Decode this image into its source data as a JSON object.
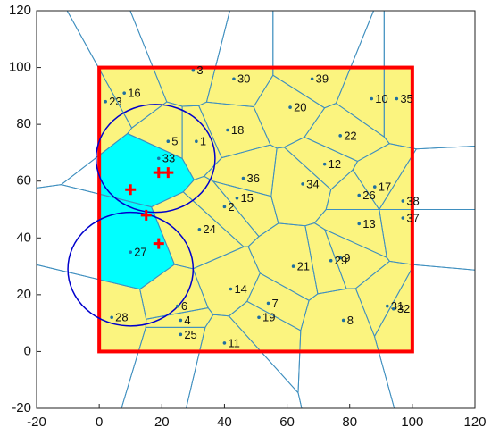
{
  "chart_data": {
    "type": "voronoi",
    "xlim": [
      -20,
      120
    ],
    "ylim": [
      -20,
      120
    ],
    "xticks": [
      -20,
      0,
      20,
      40,
      60,
      80,
      100,
      120
    ],
    "yticks": [
      -20,
      0,
      20,
      40,
      60,
      80,
      100,
      120
    ],
    "cell_color": "#fbf47f",
    "edge_color": "#3f8fbf",
    "point_color": "#1f6f9f",
    "points": [
      {
        "label": "1",
        "x": 31,
        "y": 74
      },
      {
        "label": "2",
        "x": 40,
        "y": 51
      },
      {
        "label": "3",
        "x": 30,
        "y": 99
      },
      {
        "label": "4",
        "x": 26,
        "y": 11
      },
      {
        "label": "5",
        "x": 22,
        "y": 74
      },
      {
        "label": "6",
        "x": 25,
        "y": 16
      },
      {
        "label": "7",
        "x": 54,
        "y": 17
      },
      {
        "label": "8",
        "x": 78,
        "y": 11
      },
      {
        "label": "9",
        "x": 77,
        "y": 33
      },
      {
        "label": "10",
        "x": 87,
        "y": 89
      },
      {
        "label": "11",
        "x": 40,
        "y": 3
      },
      {
        "label": "12",
        "x": 72,
        "y": 66
      },
      {
        "label": "13",
        "x": 83,
        "y": 45
      },
      {
        "label": "14",
        "x": 42,
        "y": 22
      },
      {
        "label": "15",
        "x": 44,
        "y": 54
      },
      {
        "label": "16",
        "x": 8,
        "y": 91
      },
      {
        "label": "17",
        "x": 88,
        "y": 58
      },
      {
        "label": "18",
        "x": 41,
        "y": 78
      },
      {
        "label": "19",
        "x": 51,
        "y": 12
      },
      {
        "label": "20",
        "x": 61,
        "y": 86
      },
      {
        "label": "21",
        "x": 62,
        "y": 30
      },
      {
        "label": "22",
        "x": 77,
        "y": 76
      },
      {
        "label": "23",
        "x": 2,
        "y": 88
      },
      {
        "label": "24",
        "x": 32,
        "y": 43
      },
      {
        "label": "25",
        "x": 26,
        "y": 6
      },
      {
        "label": "26",
        "x": 83,
        "y": 55
      },
      {
        "label": "27",
        "x": 10,
        "y": 35,
        "cell_color": "#00ffff"
      },
      {
        "label": "28",
        "x": 4,
        "y": 12
      },
      {
        "label": "29",
        "x": 74,
        "y": 32
      },
      {
        "label": "30",
        "x": 43,
        "y": 96
      },
      {
        "label": "31",
        "x": 92,
        "y": 16
      },
      {
        "label": "32",
        "x": 94,
        "y": 15
      },
      {
        "label": "33",
        "x": 19,
        "y": 68,
        "cell_color": "#00ffff"
      },
      {
        "label": "34",
        "x": 65,
        "y": 59
      },
      {
        "label": "35",
        "x": 95,
        "y": 89
      },
      {
        "label": "36",
        "x": 46,
        "y": 61
      },
      {
        "label": "37",
        "x": 97,
        "y": 47
      },
      {
        "label": "38",
        "x": 97,
        "y": 53
      },
      {
        "label": "39",
        "x": 68,
        "y": 96
      }
    ],
    "region": {
      "xlim": [
        0,
        100
      ],
      "ylim": [
        0,
        100
      ],
      "color": "#ff0000"
    },
    "circles": {
      "color": "#0000cc",
      "items": [
        {
          "x": 18,
          "y": 68,
          "r": 19
        },
        {
          "x": 10,
          "y": 29,
          "r": 20
        }
      ]
    },
    "crosses": {
      "color": "#ff0000",
      "x": [
        10,
        15,
        19,
        19,
        22
      ],
      "y": [
        57,
        48,
        38,
        63,
        63
      ]
    }
  }
}
